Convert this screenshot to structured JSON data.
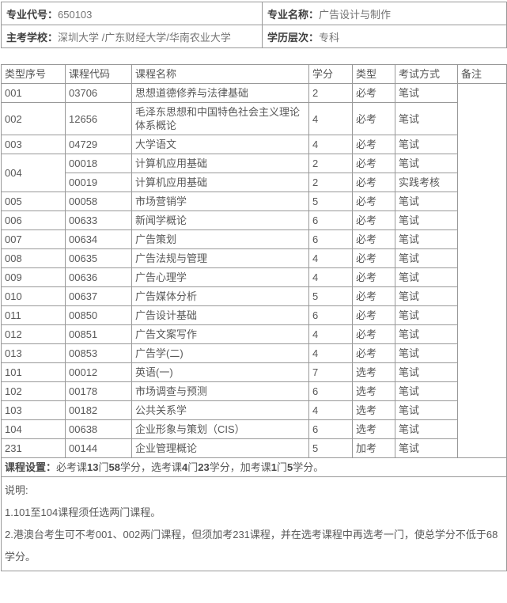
{
  "info": {
    "major_code_label": "专业代号：",
    "major_code": "650103",
    "major_name_label": "专业名称：",
    "major_name": "广告设计与制作",
    "schools_label": "主考学校：",
    "schools": "深圳大学 /广东财经大学/华南农业大学",
    "level_label": "学历层次：",
    "level": "专科"
  },
  "course_table": {
    "columns": [
      "类型序号",
      "课程代码",
      "课程名称",
      "学分",
      "类型",
      "考试方式",
      "备注"
    ],
    "rows": [
      {
        "no": "001",
        "code": "03706",
        "name": "思想道德修养与法律基础",
        "credits": "2",
        "type": "必考",
        "exam": "笔试"
      },
      {
        "no": "002",
        "code": "12656",
        "name": "毛泽东思想和中国特色社会主义理论体系概论",
        "credits": "4",
        "type": "必考",
        "exam": "笔试"
      },
      {
        "no": "003",
        "code": "04729",
        "name": "大学语文",
        "credits": "4",
        "type": "必考",
        "exam": "笔试"
      },
      {
        "no": "004",
        "no_rowspan": 2,
        "code": "00018",
        "name": "计算机应用基础",
        "credits": "2",
        "type": "必考",
        "exam": "笔试"
      },
      {
        "no": null,
        "code": "00019",
        "name": "计算机应用基础",
        "credits": "2",
        "type": "必考",
        "exam": "实践考核"
      },
      {
        "no": "005",
        "code": "00058",
        "name": "市场营销学",
        "credits": "5",
        "type": "必考",
        "exam": "笔试"
      },
      {
        "no": "006",
        "code": "00633",
        "name": "新闻学概论",
        "credits": "6",
        "type": "必考",
        "exam": "笔试"
      },
      {
        "no": "007",
        "code": "00634",
        "name": "广告策划",
        "credits": "6",
        "type": "必考",
        "exam": "笔试"
      },
      {
        "no": "008",
        "code": "00635",
        "name": "广告法规与管理",
        "credits": "4",
        "type": "必考",
        "exam": "笔试"
      },
      {
        "no": "009",
        "code": "00636",
        "name": "广告心理学",
        "credits": "4",
        "type": "必考",
        "exam": "笔试"
      },
      {
        "no": "010",
        "code": "00637",
        "name": "广告媒体分析",
        "credits": "5",
        "type": "必考",
        "exam": "笔试"
      },
      {
        "no": "011",
        "code": "00850",
        "name": "广告设计基础",
        "credits": "6",
        "type": "必考",
        "exam": "笔试"
      },
      {
        "no": "012",
        "code": "00851",
        "name": "广告文案写作",
        "credits": "4",
        "type": "必考",
        "exam": "笔试"
      },
      {
        "no": "013",
        "code": "00853",
        "name": "广告学(二)",
        "credits": "4",
        "type": "必考",
        "exam": "笔试"
      },
      {
        "no": "101",
        "code": "00012",
        "name": "英语(一)",
        "credits": "7",
        "type": "选考",
        "exam": "笔试"
      },
      {
        "no": "102",
        "code": "00178",
        "name": "市场调查与预测",
        "credits": "6",
        "type": "选考",
        "exam": "笔试"
      },
      {
        "no": "103",
        "code": "00182",
        "name": "公共关系学",
        "credits": "4",
        "type": "选考",
        "exam": "笔试"
      },
      {
        "no": "104",
        "code": "00638",
        "name": "企业形象与策划（CIS）",
        "credits": "6",
        "type": "选考",
        "exam": "笔试"
      },
      {
        "no": "231",
        "code": "00144",
        "name": "企业管理概论",
        "credits": "5",
        "type": "加考",
        "exam": "笔试"
      }
    ],
    "remark_value": ""
  },
  "summary": {
    "segments": [
      {
        "text": "课程设置：",
        "bold": true
      },
      {
        "text": "必考课",
        "bold": false
      },
      {
        "text": "13",
        "bold": true
      },
      {
        "text": "门",
        "bold": false
      },
      {
        "text": "58",
        "bold": true
      },
      {
        "text": "学分，选考课",
        "bold": false
      },
      {
        "text": "4",
        "bold": true
      },
      {
        "text": "门",
        "bold": false
      },
      {
        "text": "23",
        "bold": true
      },
      {
        "text": "学分，加考课",
        "bold": false
      },
      {
        "text": "1",
        "bold": true
      },
      {
        "text": "门",
        "bold": false
      },
      {
        "text": "5",
        "bold": true
      },
      {
        "text": "学分。",
        "bold": false
      }
    ]
  },
  "notes": {
    "title": "说明:",
    "items": [
      "1.101至104课程须任选两门课程。",
      "2.港澳台考生可不考001、002两门课程，但须加考231课程，并在选考课程中再选考一门，使总学分不低于68学分。"
    ]
  },
  "colors": {
    "border": "#999999",
    "label_text": "#404040",
    "body_text": "#595959",
    "value_text": "#737373"
  }
}
